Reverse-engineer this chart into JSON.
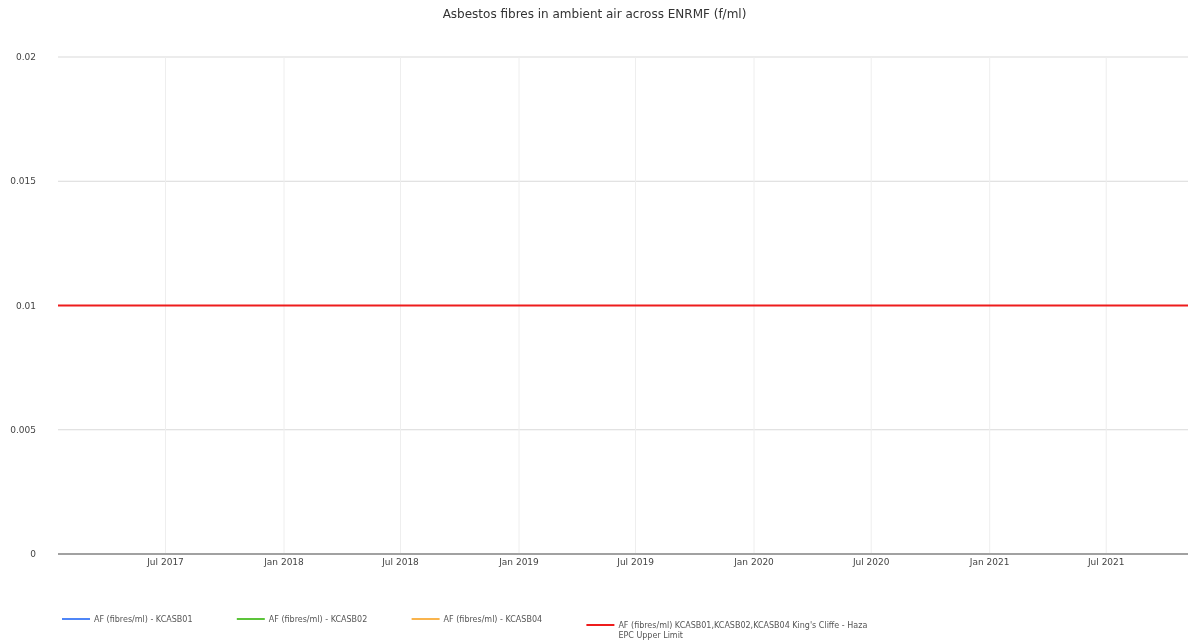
{
  "chart_data": {
    "type": "line",
    "title": "Asbestos fibres in ambient air across ENRMF (f/ml)",
    "x": [
      "2017-01-15",
      "2021-11-05"
    ],
    "series": [
      {
        "name": "AF (fibres/ml) - KCASB01",
        "color": "#4f86f7",
        "values": [
          null,
          null
        ]
      },
      {
        "name": "AF (fibres/ml) - KCASB02",
        "color": "#5cc43a",
        "values": [
          null,
          null
        ]
      },
      {
        "name": "AF (fibres/ml) - KCASB04",
        "color": "#f9b44d",
        "values": [
          null,
          null
        ]
      },
      {
        "name": "AF (fibres/ml) KCASB01,KCASB02,KCASB04 King's Cliffe - Haza EPC Upper Limit",
        "color": "#ee1c1c",
        "values": [
          0.01,
          0.01
        ]
      }
    ],
    "xlim": [
      "2017-01-15",
      "2021-11-05"
    ],
    "xticks": [
      {
        "value": "2017-07-01",
        "label": "Jul 2017"
      },
      {
        "value": "2018-01-01",
        "label": "Jan 2018"
      },
      {
        "value": "2018-07-01",
        "label": "Jul 2018"
      },
      {
        "value": "2019-01-01",
        "label": "Jan 2019"
      },
      {
        "value": "2019-07-01",
        "label": "Jul 2019"
      },
      {
        "value": "2020-01-01",
        "label": "Jan 2020"
      },
      {
        "value": "2020-07-01",
        "label": "Jul 2020"
      },
      {
        "value": "2021-01-01",
        "label": "Jan 2021"
      },
      {
        "value": "2021-07-01",
        "label": "Jul 2021"
      }
    ],
    "ylim": [
      0,
      0.02
    ],
    "yticks": [
      0,
      0.005,
      0.01,
      0.015,
      0.02
    ],
    "grid": true,
    "legend": "bottom",
    "marker": "none",
    "line_style": "solid"
  }
}
